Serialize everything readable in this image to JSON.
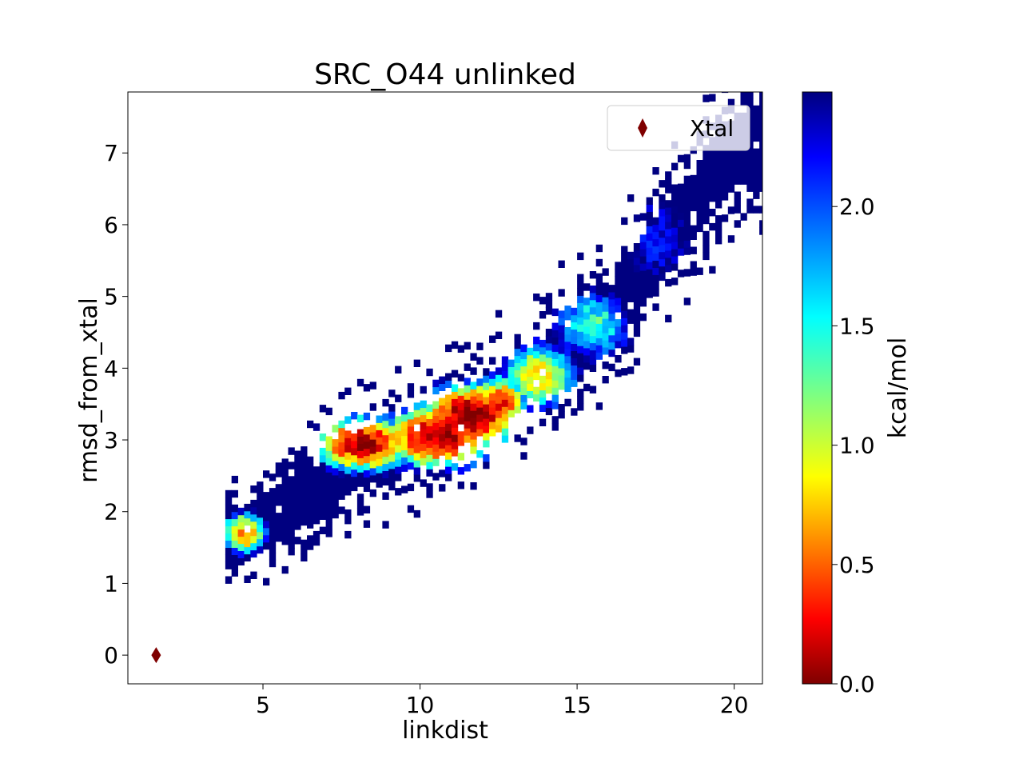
{
  "chart_data": {
    "type": "heatmap",
    "title": "SRC_O44 unlinked",
    "xlabel": "linkdist",
    "ylabel": "rmsd_from_xtal",
    "xlim": [
      0.7,
      20.9
    ],
    "ylim": [
      -0.4,
      7.85
    ],
    "xticks": [
      5,
      10,
      15,
      20
    ],
    "yticks": [
      0,
      1,
      2,
      3,
      4,
      5,
      6,
      7
    ],
    "colorbar": {
      "label": "kcal/mol",
      "min": 0.0,
      "max": 2.48,
      "ticks": [
        "0.0",
        "0.5",
        "1.0",
        "1.5",
        "2.0"
      ],
      "tick_values": [
        0.0,
        0.5,
        1.0,
        1.5,
        2.0
      ],
      "colormap": "jet_r"
    },
    "bin_width_x": 0.2,
    "bin_height_y": 0.1,
    "density_blobs": [
      {
        "x": 4.4,
        "y": 1.7,
        "energy": 0.65,
        "sx": 0.45,
        "sy": 0.18
      },
      {
        "x": 8.2,
        "y": 2.95,
        "energy": 0.12,
        "sx": 0.9,
        "sy": 0.22
      },
      {
        "x": 10.6,
        "y": 3.05,
        "energy": 0.05,
        "sx": 1.0,
        "sy": 0.25
      },
      {
        "x": 11.6,
        "y": 3.35,
        "energy": 0.0,
        "sx": 0.9,
        "sy": 0.25
      },
      {
        "x": 12.5,
        "y": 3.5,
        "energy": 0.3,
        "sx": 0.5,
        "sy": 0.22
      },
      {
        "x": 13.8,
        "y": 3.9,
        "energy": 0.9,
        "sx": 0.8,
        "sy": 0.3
      },
      {
        "x": 15.5,
        "y": 4.6,
        "energy": 1.4,
        "sx": 0.9,
        "sy": 0.35
      },
      {
        "x": 17.5,
        "y": 5.8,
        "energy": 2.2,
        "sx": 1.2,
        "sy": 0.7
      }
    ],
    "trend_band": {
      "points": [
        [
          4.0,
          1.55
        ],
        [
          6.0,
          2.1
        ],
        [
          8.0,
          2.7
        ],
        [
          10.0,
          3.0
        ],
        [
          12.0,
          3.45
        ],
        [
          14.0,
          4.0
        ],
        [
          16.0,
          4.7
        ],
        [
          18.0,
          5.9
        ],
        [
          20.0,
          7.0
        ]
      ],
      "half_width_y": 0.75
    },
    "series": [
      {
        "name": "Xtal",
        "type": "scatter",
        "marker": "diamond",
        "color": "#7f0000",
        "x": [
          1.6
        ],
        "y": [
          0.0
        ]
      }
    ],
    "legend": {
      "position": "top-right"
    }
  }
}
